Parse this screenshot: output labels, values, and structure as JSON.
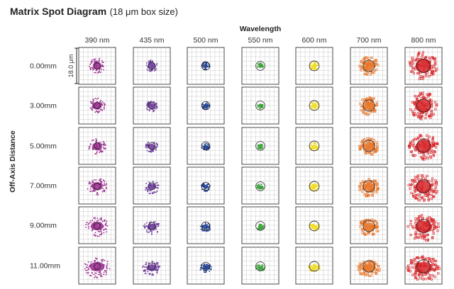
{
  "chart_data": {
    "type": "spot-diagram-matrix",
    "title": "Matrix Spot Diagram",
    "subtitle": "(18 μm box size)",
    "column_axis_label": "Wavelength",
    "row_axis_label": "Off-Axis Distance",
    "box_size_label": "18.0 μm",
    "box_size_um": 18.0,
    "wavelengths": [
      "390 nm",
      "435 nm",
      "500 nm",
      "550 nm",
      "600 nm",
      "700 nm",
      "800 nm"
    ],
    "field_positions": [
      "0.00mm",
      "3.00mm",
      "5.00mm",
      "7.00mm",
      "9.00mm",
      "11.00mm"
    ],
    "wavelength_colors": [
      "#9b2a8f",
      "#6e3a9e",
      "#1f3f93",
      "#3aa33a",
      "#f2dc1f",
      "#e8762a",
      "#d8262a"
    ],
    "spot_radius_um": [
      [
        3.8,
        2.9,
        2.0,
        1.5,
        2.2,
        4.6,
        7.0
      ],
      [
        4.0,
        3.0,
        2.0,
        1.5,
        2.2,
        4.6,
        7.0
      ],
      [
        4.3,
        3.2,
        2.1,
        1.6,
        2.3,
        4.7,
        7.1
      ],
      [
        4.9,
        3.6,
        2.3,
        1.8,
        2.4,
        4.9,
        7.3
      ],
      [
        5.6,
        4.1,
        2.6,
        2.0,
        2.6,
        5.1,
        7.6
      ],
      [
        6.5,
        4.7,
        3.0,
        2.3,
        2.9,
        5.4,
        8.0
      ]
    ],
    "airy_radius_um": [
      1.5,
      1.7,
      2.0,
      2.2,
      2.4,
      2.8,
      3.2
    ]
  }
}
